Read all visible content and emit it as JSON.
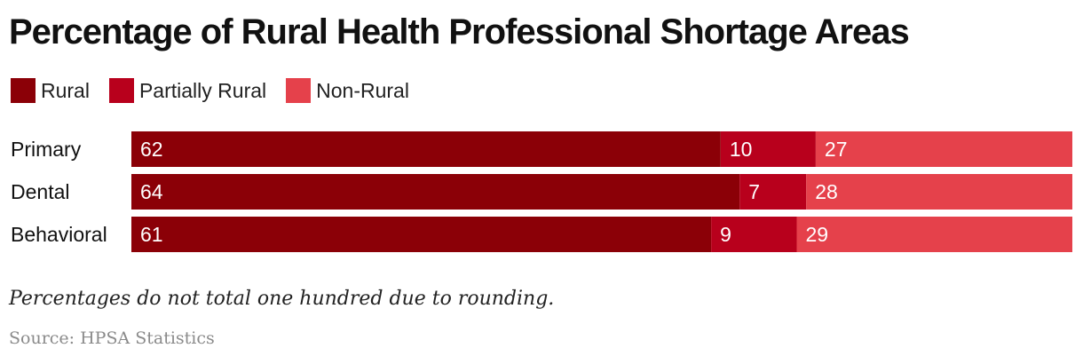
{
  "chart_data": {
    "type": "bar",
    "orientation": "horizontal",
    "stacked": true,
    "title": "Percentage of Rural Health Professional Shortage Areas",
    "categories": [
      "Primary",
      "Dental",
      "Behavioral"
    ],
    "series": [
      {
        "name": "Rural",
        "values": [
          62,
          64,
          61
        ],
        "color": "#8b0007"
      },
      {
        "name": "Partially Rural",
        "values": [
          10,
          7,
          9
        ],
        "color": "#b8001c"
      },
      {
        "name": "Non-Rural",
        "values": [
          27,
          28,
          29
        ],
        "color": "#e5414b"
      }
    ],
    "legend_position": "top-left",
    "grid": false
  },
  "note": "Percentages do not total one hundred due to rounding.",
  "source": "Source: HPSA Statistics"
}
